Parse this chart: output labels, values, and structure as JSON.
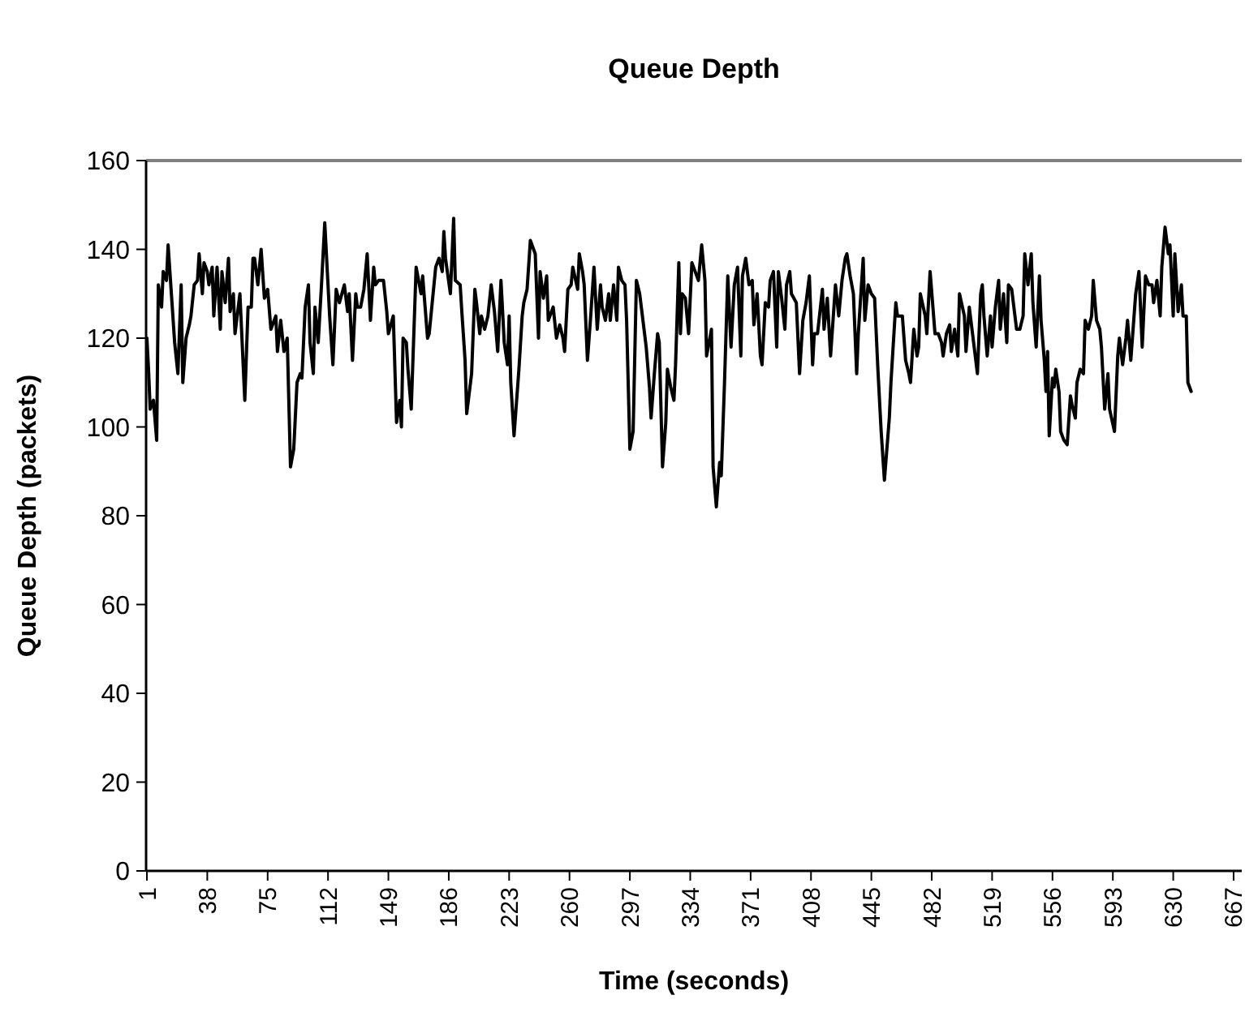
{
  "chart_data": {
    "type": "line",
    "title": "Queue Depth",
    "xlabel": "Time (seconds)",
    "ylabel": "Queue Depth (packets)",
    "xlim": [
      0.5,
      672
    ],
    "xticks": [
      1,
      38,
      75,
      112,
      149,
      186,
      223,
      260,
      297,
      334,
      371,
      408,
      445,
      482,
      519,
      556,
      593,
      630,
      667
    ],
    "ylim": [
      0,
      160
    ],
    "yticks": [
      0,
      20,
      40,
      60,
      80,
      100,
      120,
      140,
      160
    ],
    "grid": false,
    "series": [
      {
        "color": "#000000",
        "x": [
          1,
          2,
          3,
          5,
          7,
          8,
          10,
          11,
          13,
          14,
          16,
          18,
          20,
          22,
          23,
          25,
          27,
          28,
          30,
          32,
          33,
          35,
          36,
          38,
          39,
          41,
          42,
          44,
          46,
          47,
          49,
          51,
          52,
          54,
          55,
          58,
          61,
          63,
          65,
          66,
          67,
          69,
          71,
          73,
          75,
          77,
          80,
          81,
          83,
          85,
          87,
          89,
          91,
          93,
          95,
          96,
          98,
          100,
          101,
          103,
          104,
          106,
          108,
          110,
          113,
          115,
          117,
          119,
          122,
          124,
          125,
          127,
          129,
          130,
          132,
          134,
          136,
          138,
          140,
          141,
          143,
          146,
          148,
          149,
          152,
          154,
          156,
          157,
          158,
          160,
          161,
          163,
          166,
          169,
          170,
          173,
          174,
          178,
          180,
          182,
          183,
          184,
          187,
          189,
          190,
          193,
          194,
          196,
          197,
          199,
          200,
          202,
          203,
          205,
          206,
          208,
          210,
          212,
          214,
          216,
          218,
          220,
          222,
          223,
          224,
          226,
          229,
          231,
          232,
          234,
          236,
          239,
          241,
          242,
          244,
          246,
          247,
          250,
          252,
          254,
          256,
          257,
          259,
          261,
          262,
          265,
          266,
          268,
          269,
          271,
          273,
          275,
          277,
          279,
          280,
          282,
          284,
          285,
          287,
          289,
          290,
          292,
          294,
          295,
          297,
          299,
          301,
          303,
          305,
          307,
          309,
          310,
          312,
          314,
          315,
          317,
          319,
          320,
          322,
          324,
          325,
          327,
          328,
          329,
          331,
          333,
          335,
          337,
          339,
          341,
          343,
          344,
          347,
          348,
          350,
          352,
          353,
          355,
          357,
          359,
          361,
          363,
          365,
          366,
          368,
          370,
          372,
          373,
          375,
          377,
          378,
          380,
          382,
          383,
          385,
          387,
          388,
          390,
          392,
          393,
          395,
          396,
          399,
          401,
          403,
          405,
          407,
          409,
          410,
          412,
          415,
          416,
          418,
          420,
          423,
          425,
          427,
          429,
          430,
          432,
          434,
          436,
          437,
          440,
          441,
          443,
          445,
          447,
          449,
          451,
          453,
          456,
          457,
          460,
          461,
          464,
          466,
          468,
          469,
          471,
          473,
          474,
          475,
          478,
          479,
          481,
          484,
          486,
          488,
          489,
          491,
          493,
          494,
          496,
          498,
          499,
          502,
          503,
          505,
          507,
          509,
          510,
          512,
          513,
          514,
          516,
          518,
          519,
          521,
          523,
          524,
          526,
          528,
          529,
          531,
          533,
          534,
          536,
          538,
          539,
          541,
          543,
          544,
          546,
          548,
          549,
          551,
          552,
          553,
          554,
          556,
          557,
          558,
          560,
          561,
          563,
          565,
          567,
          568,
          570,
          571,
          573,
          575,
          576,
          578,
          580,
          581,
          583,
          585,
          586,
          588,
          590,
          591,
          594,
          596,
          597,
          599,
          601,
          602,
          604,
          606,
          607,
          609,
          611,
          613,
          615,
          617,
          618,
          620,
          622,
          623,
          625,
          627,
          628,
          630,
          631,
          633,
          635,
          636,
          638,
          639,
          641
        ],
        "values": [
          120,
          113,
          104,
          106,
          97,
          132,
          127,
          135,
          133,
          141,
          130,
          119,
          112,
          132,
          110,
          120,
          123,
          125,
          132,
          133,
          139,
          130,
          137,
          135,
          132,
          136,
          125,
          136,
          122,
          135,
          128,
          138,
          126,
          130,
          121,
          130,
          106,
          127,
          127,
          138,
          138,
          132,
          140,
          129,
          131,
          122,
          125,
          117,
          124,
          117,
          120,
          91,
          95,
          110,
          112,
          111,
          127,
          132,
          119,
          112,
          127,
          119,
          132,
          146,
          125,
          114,
          131,
          128,
          132,
          126,
          130,
          115,
          130,
          127,
          127,
          131,
          139,
          124,
          136,
          132,
          133,
          133,
          126,
          121,
          125,
          101,
          106,
          100,
          120,
          119,
          113,
          104,
          136,
          130,
          134,
          120,
          121,
          136,
          138,
          135,
          144,
          138,
          130,
          147,
          133,
          132,
          126,
          115,
          103,
          109,
          112,
          131,
          128,
          121,
          125,
          122,
          125,
          132,
          126,
          117,
          133,
          119,
          114,
          125,
          110,
          98,
          113,
          125,
          128,
          131,
          142,
          139,
          120,
          135,
          129,
          134,
          124,
          127,
          120,
          123,
          120,
          117,
          131,
          132,
          136,
          131,
          139,
          135,
          132,
          115,
          125,
          136,
          122,
          132,
          127,
          124,
          130,
          124,
          132,
          124,
          136,
          133,
          132,
          124,
          95,
          99,
          133,
          130,
          124,
          118,
          109,
          102,
          112,
          121,
          119,
          91,
          101,
          113,
          109,
          106,
          114,
          137,
          121,
          130,
          129,
          121,
          137,
          135,
          133,
          141,
          133,
          116,
          122,
          91,
          82,
          92,
          89,
          110,
          134,
          118,
          132,
          136,
          116,
          134,
          138,
          132,
          133,
          123,
          130,
          116,
          114,
          128,
          127,
          133,
          135,
          118,
          135,
          129,
          122,
          132,
          135,
          130,
          128,
          112,
          124,
          128,
          134,
          114,
          121,
          121,
          131,
          122,
          129,
          116,
          132,
          125,
          133,
          138,
          139,
          134,
          130,
          112,
          121,
          138,
          124,
          132,
          130,
          129,
          113,
          99,
          88,
          102,
          110,
          128,
          125,
          125,
          115,
          112,
          110,
          122,
          116,
          118,
          130,
          125,
          121,
          135,
          121,
          121,
          119,
          116,
          121,
          123,
          117,
          122,
          116,
          130,
          125,
          117,
          127,
          121,
          115,
          112,
          130,
          132,
          125,
          116,
          125,
          118,
          127,
          133,
          122,
          130,
          119,
          132,
          131,
          125,
          122,
          122,
          125,
          139,
          132,
          139,
          128,
          118,
          134,
          124,
          115,
          108,
          117,
          98,
          111,
          109,
          113,
          108,
          99,
          97,
          96,
          107,
          105,
          102,
          110,
          113,
          112,
          124,
          122,
          125,
          133,
          124,
          122,
          118,
          104,
          112,
          104,
          99,
          116,
          120,
          114,
          120,
          124,
          115,
          125,
          130,
          135,
          118,
          134,
          132,
          132,
          128,
          133,
          125,
          136,
          145,
          139,
          141,
          125,
          139,
          126,
          132,
          125,
          125,
          110,
          108
        ]
      }
    ]
  }
}
